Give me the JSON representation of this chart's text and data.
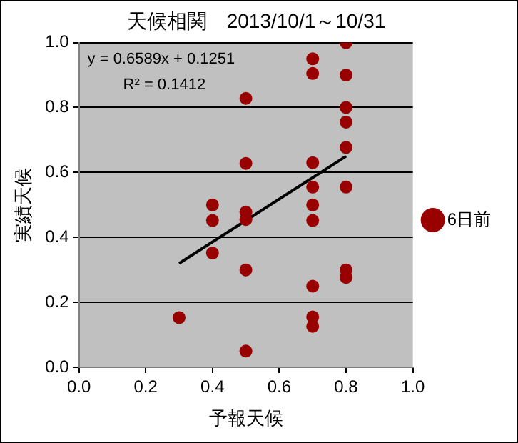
{
  "chart_data": {
    "type": "scatter",
    "title": "天候相関　2013/10/1～10/31",
    "xlabel": "予報天候",
    "ylabel": "実績天候",
    "xlim": [
      0,
      1
    ],
    "xticks": [
      {
        "value": 0,
        "label": "0.0"
      },
      {
        "value": 0.2,
        "label": "0.2"
      },
      {
        "value": 0.4,
        "label": "0.4"
      },
      {
        "value": 0.6,
        "label": "0.6"
      },
      {
        "value": 0.8,
        "label": "0.8"
      },
      {
        "value": 1,
        "label": "1.0"
      }
    ],
    "ylim": [
      0,
      1
    ],
    "yticks": [
      {
        "value": 0,
        "label": "0.0"
      },
      {
        "value": 0.2,
        "label": "0.2"
      },
      {
        "value": 0.4,
        "label": "0.4"
      },
      {
        "value": 0.6,
        "label": "0.6"
      },
      {
        "value": 0.8,
        "label": "0.8"
      },
      {
        "value": 1,
        "label": "1.0"
      }
    ],
    "grid": "y",
    "legend": "right",
    "marker": "circle",
    "annotations": [
      "y = 0.6589x + 0.1251",
      "R² = 0.1412"
    ],
    "series": [
      {
        "name": "6日前",
        "color": "#990000",
        "x": [
          0.8,
          0.8,
          0.8,
          0.8,
          0.8,
          0.8,
          0.8,
          0.8,
          0.7,
          0.7,
          0.7,
          0.7,
          0.7,
          0.7,
          0.7,
          0.7,
          0.7,
          0.5,
          0.5,
          0.5,
          0.5,
          0.5,
          0.5,
          0.4,
          0.4,
          0.4,
          0.3
        ],
        "values": [
          1.0,
          0.9,
          0.8,
          0.755,
          0.677,
          0.555,
          0.3,
          0.277,
          0.95,
          0.905,
          0.63,
          0.555,
          0.5,
          0.452,
          0.25,
          0.155,
          0.126,
          0.828,
          0.628,
          0.478,
          0.455,
          0.3,
          0.05,
          0.5,
          0.452,
          0.352,
          0.153
        ]
      },
      {
        "type": "line",
        "color": "#000000",
        "marker": "none",
        "x": [
          0.3,
          0.8
        ],
        "values": [
          0.32,
          0.65
        ]
      }
    ]
  }
}
